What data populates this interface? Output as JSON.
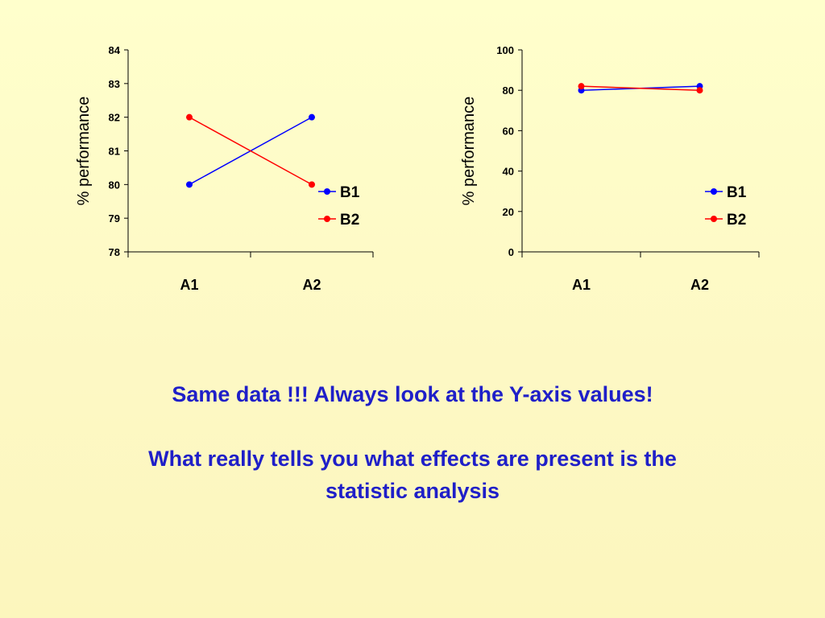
{
  "chart_data": [
    {
      "type": "line",
      "categories": [
        "A1",
        "A2"
      ],
      "series": [
        {
          "name": "B1",
          "values": [
            80,
            82
          ],
          "color": "#0000ff"
        },
        {
          "name": "B2",
          "values": [
            82,
            80
          ],
          "color": "#ff0000"
        }
      ],
      "ylabel": "% performance",
      "xlabel": "",
      "ylim": [
        78,
        84
      ],
      "yticks": [
        "78",
        "79",
        "80",
        "81",
        "82",
        "83",
        "84"
      ],
      "legend": "right",
      "grid": false
    },
    {
      "type": "line",
      "categories": [
        "A1",
        "A2"
      ],
      "series": [
        {
          "name": "B1",
          "values": [
            80,
            82
          ],
          "color": "#0000ff"
        },
        {
          "name": "B2",
          "values": [
            82,
            80
          ],
          "color": "#ff0000"
        }
      ],
      "ylabel": "% performance",
      "xlabel": "",
      "ylim": [
        0,
        100
      ],
      "yticks": [
        "0",
        "20",
        "40",
        "60",
        "80",
        "100"
      ],
      "legend": "right",
      "grid": false
    }
  ],
  "caption": {
    "line1": "Same data !!! Always look at the Y-axis values!",
    "line2": "What really tells you what effects are present is the",
    "line3": "statistic analysis"
  },
  "colors": {
    "caption": "#1f1fc8",
    "background_top": "#ffffcc"
  }
}
